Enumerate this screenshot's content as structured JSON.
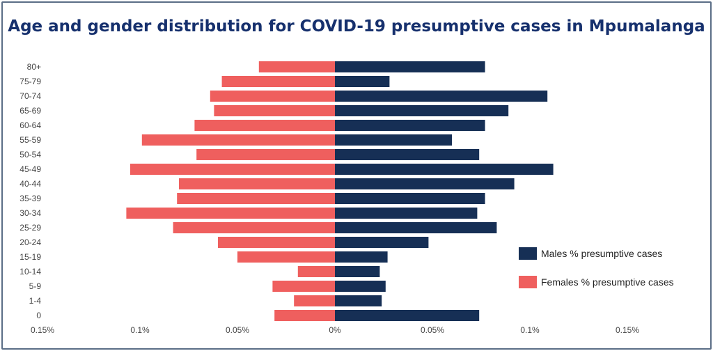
{
  "chart_data": {
    "type": "bar",
    "orientation": "horizontal",
    "title": "Age and gender distribution for COVID-19 presumptive cases in Mpumalanga",
    "categories": [
      "80+",
      "75-79",
      "70-74",
      "65-69",
      "60-64",
      "55-59",
      "50-54",
      "45-49",
      "40-44",
      "35-39",
      "30-34",
      "25-29",
      "20-24",
      "15-19",
      "10-14",
      "5-9",
      "1-4",
      "0"
    ],
    "series": [
      {
        "name": "Males % presumptive cases",
        "color": "#162f55",
        "values": [
          0.077,
          0.028,
          0.109,
          0.089,
          0.077,
          0.06,
          0.074,
          0.112,
          0.092,
          0.077,
          0.073,
          0.083,
          0.048,
          0.027,
          0.023,
          0.026,
          0.024,
          0.074
        ]
      },
      {
        "name": "Females % presumptive cases",
        "color": "#ef5f5e",
        "values": [
          0.039,
          0.058,
          0.064,
          0.062,
          0.072,
          0.099,
          0.071,
          0.105,
          0.08,
          0.081,
          0.107,
          0.083,
          0.06,
          0.05,
          0.019,
          0.032,
          0.021,
          0.031
        ]
      }
    ],
    "xlim": [
      -0.15,
      0.15
    ],
    "xticks": [
      -0.15,
      -0.1,
      -0.05,
      0,
      0.05,
      0.1,
      0.15
    ],
    "xtick_labels": [
      "0.15%",
      "0.1%",
      "0.05%",
      "0%",
      "0.05%",
      "0.1%",
      "0.15%"
    ],
    "grid": false,
    "legend_position": "bottom-right"
  }
}
